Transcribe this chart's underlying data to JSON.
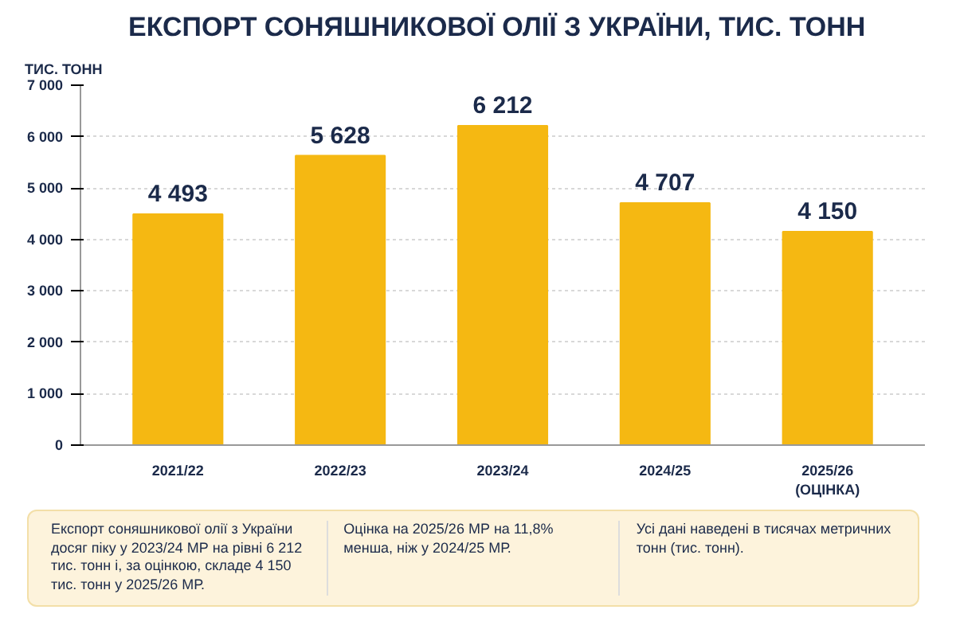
{
  "chart_data": {
    "type": "bar",
    "title": "ЕКСПОРТ СОНЯШНИКОВОЇ ОЛІЇ З УКРАЇНИ, ТИС. ТОНН",
    "ylabel": "ТИС. ТОНН",
    "categories": [
      "2021/22",
      "2022/23",
      "2023/24",
      "2024/25",
      "2025/26\n(ОЦІНКА)"
    ],
    "values": [
      4493,
      5628,
      6212,
      4707,
      4150
    ],
    "color": "#f5b812",
    "value_labels": [
      "4 493",
      "5 628",
      "6 212",
      "4 707",
      "4 150"
    ],
    "ylim": [
      0,
      7000
    ],
    "yticks": [
      0,
      {
        "value": 1000,
        "label": "1 000"
      },
      {
        "value": 2000,
        "label": "2 000"
      },
      {
        "value": 3000,
        "label": "3 000"
      },
      {
        "value": 4000,
        "label": "4 000"
      },
      {
        "value": 5000,
        "label": "5 000"
      },
      {
        "value": 6000,
        "label": "6 000"
      },
      {
        "value": 7000,
        "label": "7 000"
      }
    ],
    "grid": "y",
    "annotations": [
      "Експорт соняшникової олії з України досяг піку у 2023/24 МР на рівні 6 212 тис. тонн і, за оцінкою, складе 4 150 тис. тонн у 2025/26 МР.",
      "Оцінка на 2025/26 МР на 11,8% менша, ніж у 2024/25 МР.",
      "Усі дані наведені в тисячах метричних тонн (тис. тонн)."
    ]
  }
}
